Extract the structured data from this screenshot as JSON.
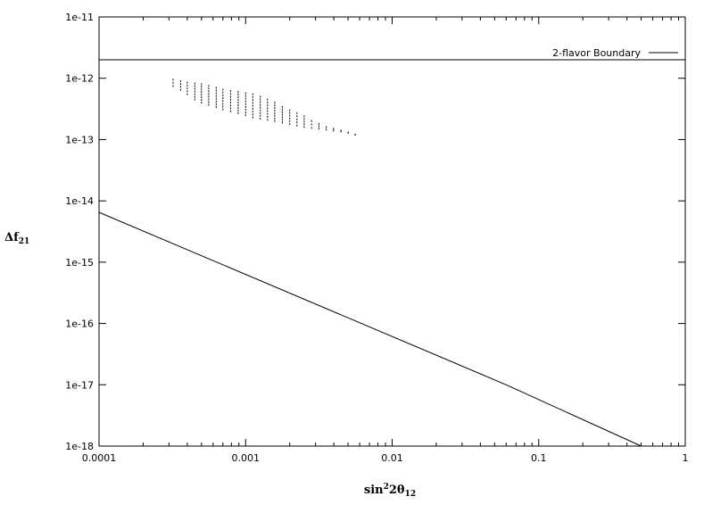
{
  "chart_data": {
    "type": "scatter",
    "title": "",
    "xlabel": {
      "main": "sin",
      "sup": "2",
      "mid": "2θ",
      "sub": "12"
    },
    "ylabel": {
      "main": "Δf",
      "sub": "21"
    },
    "x_scale": "log",
    "y_scale": "log",
    "xlim": [
      0.0001,
      1
    ],
    "ylim": [
      1e-18,
      1e-11
    ],
    "x_ticks": [
      {
        "value": 0.0001,
        "label": "0.0001"
      },
      {
        "value": 0.001,
        "label": "0.001"
      },
      {
        "value": 0.01,
        "label": "0.01"
      },
      {
        "value": 0.1,
        "label": "0.1"
      },
      {
        "value": 1,
        "label": "1"
      }
    ],
    "y_ticks": [
      {
        "value": 1e-11,
        "label": "1e-11"
      },
      {
        "value": 1e-12,
        "label": "1e-12"
      },
      {
        "value": 1e-13,
        "label": "1e-13"
      },
      {
        "value": 1e-14,
        "label": "1e-14"
      },
      {
        "value": 1e-15,
        "label": "1e-15"
      },
      {
        "value": 1e-16,
        "label": "1e-16"
      },
      {
        "value": 1e-17,
        "label": "1e-17"
      },
      {
        "value": 1e-18,
        "label": "1e-18"
      }
    ],
    "grid": false,
    "legend_position": "top-right",
    "series": [
      {
        "name": "2-flavor Boundary",
        "kind": "line",
        "color": "#000000",
        "points": [
          [
            0.0001,
            2e-12
          ],
          [
            1,
            2e-12
          ]
        ]
      },
      {
        "kind": "line",
        "color": "#000000",
        "points": [
          [
            0.0001,
            6.5e-15
          ],
          [
            0.06,
            1e-17
          ],
          [
            0.5,
            1e-18
          ]
        ]
      },
      {
        "kind": "points",
        "color": "#000000",
        "columns": [
          {
            "x": 0.00032,
            "y_top": 9.5e-13,
            "y_bottom": 7.5e-13
          },
          {
            "x": 0.00036,
            "y_top": 9e-13,
            "y_bottom": 6.5e-13
          },
          {
            "x": 0.0004,
            "y_top": 8.5e-13,
            "y_bottom": 5.5e-13
          },
          {
            "x": 0.00045,
            "y_top": 8.2e-13,
            "y_bottom": 4.5e-13
          },
          {
            "x": 0.0005,
            "y_top": 8e-13,
            "y_bottom": 4e-13
          },
          {
            "x": 0.00056,
            "y_top": 7.5e-13,
            "y_bottom": 3.7e-13
          },
          {
            "x": 0.00063,
            "y_top": 7e-13,
            "y_bottom": 3.4e-13
          },
          {
            "x": 0.0007,
            "y_top": 6.5e-13,
            "y_bottom": 3.1e-13
          },
          {
            "x": 0.00079,
            "y_top": 6.2e-13,
            "y_bottom": 2.9e-13
          },
          {
            "x": 0.00089,
            "y_top": 6e-13,
            "y_bottom": 2.7e-13
          },
          {
            "x": 0.001,
            "y_top": 5.7e-13,
            "y_bottom": 2.5e-13
          },
          {
            "x": 0.00112,
            "y_top": 5.5e-13,
            "y_bottom": 2.3e-13
          },
          {
            "x": 0.00126,
            "y_top": 5e-13,
            "y_bottom": 2.2e-13
          },
          {
            "x": 0.00141,
            "y_top": 4.5e-13,
            "y_bottom": 2.1e-13
          },
          {
            "x": 0.00158,
            "y_top": 4e-13,
            "y_bottom": 2e-13
          },
          {
            "x": 0.00178,
            "y_top": 3.4e-13,
            "y_bottom": 1.9e-13
          },
          {
            "x": 0.002,
            "y_top": 3e-13,
            "y_bottom": 1.8e-13
          },
          {
            "x": 0.00224,
            "y_top": 2.7e-13,
            "y_bottom": 1.7e-13
          },
          {
            "x": 0.00251,
            "y_top": 2.4e-13,
            "y_bottom": 1.6e-13
          },
          {
            "x": 0.00282,
            "y_top": 2e-13,
            "y_bottom": 1.55e-13
          },
          {
            "x": 0.00316,
            "y_top": 1.8e-13,
            "y_bottom": 1.5e-13
          },
          {
            "x": 0.00355,
            "y_top": 1.6e-13,
            "y_bottom": 1.45e-13
          },
          {
            "x": 0.00398,
            "y_top": 1.5e-13,
            "y_bottom": 1.4e-13
          },
          {
            "x": 0.00447,
            "y_top": 1.4e-13,
            "y_bottom": 1.35e-13
          },
          {
            "x": 0.00501,
            "y_top": 1.3e-13,
            "y_bottom": 1.3e-13
          },
          {
            "x": 0.0056,
            "y_top": 1.2e-13,
            "y_bottom": 1.2e-13
          }
        ]
      }
    ]
  }
}
